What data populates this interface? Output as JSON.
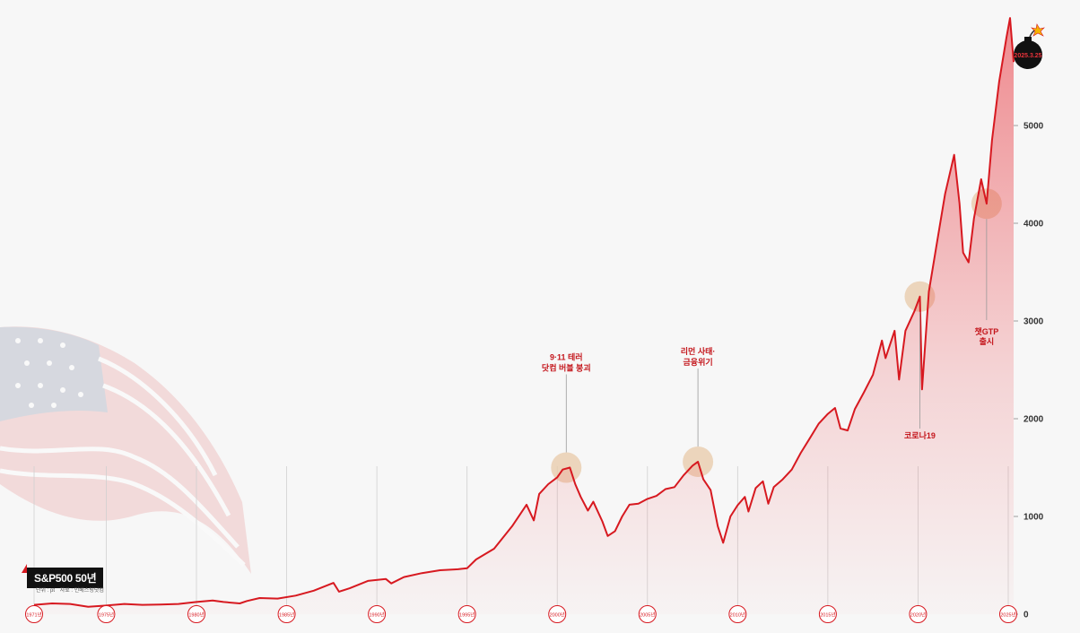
{
  "chart_data": {
    "type": "area",
    "title": "S&P500 50년",
    "subtitle_unit": "단위 : pt",
    "subtitle_source": "자료 : 인베스팅닷컴",
    "x_range": [
      1971,
      2025.3
    ],
    "ylim": [
      0,
      6000
    ],
    "y_ticks": [
      0,
      1000,
      2000,
      3000,
      4000,
      5000
    ],
    "x_ticks": [
      {
        "year": 1971,
        "label": "1971년"
      },
      {
        "year": 1975,
        "label": "1975년"
      },
      {
        "year": 1980,
        "label": "1980년"
      },
      {
        "year": 1985,
        "label": "1985년"
      },
      {
        "year": 1990,
        "label": "1990년"
      },
      {
        "year": 1995,
        "label": "1995년"
      },
      {
        "year": 2000,
        "label": "2000년"
      },
      {
        "year": 2005,
        "label": "2005년"
      },
      {
        "year": 2010,
        "label": "2010년"
      },
      {
        "year": 2015,
        "label": "2015년"
      },
      {
        "year": 2020,
        "label": "2020년"
      },
      {
        "year": 2025,
        "label": "2025년"
      }
    ],
    "series": [
      {
        "values": [
          [
            1971,
            95
          ],
          [
            1972,
            110
          ],
          [
            1973,
            105
          ],
          [
            1974,
            75
          ],
          [
            1975,
            88
          ],
          [
            1976,
            105
          ],
          [
            1977,
            95
          ],
          [
            1978,
            98
          ],
          [
            1979,
            105
          ],
          [
            1980,
            125
          ],
          [
            1980.9,
            140
          ],
          [
            1981.5,
            125
          ],
          [
            1982.4,
            110
          ],
          [
            1982.8,
            135
          ],
          [
            1983.5,
            165
          ],
          [
            1984.5,
            160
          ],
          [
            1985.5,
            190
          ],
          [
            1986.5,
            240
          ],
          [
            1987.6,
            320
          ],
          [
            1987.9,
            230
          ],
          [
            1988.5,
            265
          ],
          [
            1989.5,
            340
          ],
          [
            1990.5,
            360
          ],
          [
            1990.8,
            315
          ],
          [
            1991.5,
            380
          ],
          [
            1992.5,
            420
          ],
          [
            1993.5,
            450
          ],
          [
            1994.5,
            460
          ],
          [
            1995,
            470
          ],
          [
            1995.5,
            560
          ],
          [
            1996.5,
            670
          ],
          [
            1997.5,
            900
          ],
          [
            1998.3,
            1120
          ],
          [
            1998.7,
            960
          ],
          [
            1999,
            1230
          ],
          [
            1999.5,
            1330
          ],
          [
            2000,
            1400
          ],
          [
            2000.3,
            1480
          ],
          [
            2000.7,
            1500
          ],
          [
            2001,
            1330
          ],
          [
            2001.3,
            1200
          ],
          [
            2001.7,
            1060
          ],
          [
            2002,
            1150
          ],
          [
            2002.5,
            950
          ],
          [
            2002.8,
            800
          ],
          [
            2003.2,
            850
          ],
          [
            2003.6,
            1000
          ],
          [
            2004,
            1120
          ],
          [
            2004.5,
            1130
          ],
          [
            2005,
            1180
          ],
          [
            2005.5,
            1210
          ],
          [
            2006,
            1280
          ],
          [
            2006.5,
            1300
          ],
          [
            2007,
            1420
          ],
          [
            2007.5,
            1520
          ],
          [
            2007.8,
            1560
          ],
          [
            2008.1,
            1380
          ],
          [
            2008.5,
            1270
          ],
          [
            2008.9,
            900
          ],
          [
            2009.2,
            730
          ],
          [
            2009.6,
            1000
          ],
          [
            2010,
            1115
          ],
          [
            2010.4,
            1200
          ],
          [
            2010.6,
            1050
          ],
          [
            2011,
            1290
          ],
          [
            2011.4,
            1360
          ],
          [
            2011.7,
            1130
          ],
          [
            2012,
            1300
          ],
          [
            2012.5,
            1380
          ],
          [
            2013,
            1480
          ],
          [
            2013.5,
            1650
          ],
          [
            2014,
            1800
          ],
          [
            2014.5,
            1950
          ],
          [
            2015,
            2050
          ],
          [
            2015.4,
            2110
          ],
          [
            2015.7,
            1900
          ],
          [
            2016.1,
            1880
          ],
          [
            2016.5,
            2100
          ],
          [
            2017,
            2270
          ],
          [
            2017.5,
            2450
          ],
          [
            2018,
            2800
          ],
          [
            2018.2,
            2620
          ],
          [
            2018.7,
            2900
          ],
          [
            2018.95,
            2400
          ],
          [
            2019.3,
            2900
          ],
          [
            2019.8,
            3100
          ],
          [
            2020.1,
            3250
          ],
          [
            2020.22,
            2300
          ],
          [
            2020.6,
            3300
          ],
          [
            2021,
            3750
          ],
          [
            2021.5,
            4300
          ],
          [
            2022,
            4700
          ],
          [
            2022.3,
            4200
          ],
          [
            2022.5,
            3700
          ],
          [
            2022.8,
            3600
          ],
          [
            2023.1,
            4050
          ],
          [
            2023.5,
            4450
          ],
          [
            2023.8,
            4200
          ],
          [
            2024.1,
            4850
          ],
          [
            2024.5,
            5450
          ],
          [
            2024.9,
            5900
          ],
          [
            2025.1,
            6100
          ],
          [
            2025.3,
            5650
          ]
        ]
      }
    ],
    "annotations": [
      {
        "id": "dotcom",
        "x": 2000.5,
        "y": 1500,
        "label_lines": [
          "9·11 테러",
          "닷컴 버블 붕괴"
        ],
        "label_side": "above"
      },
      {
        "id": "lehman",
        "x": 2007.8,
        "y": 1560,
        "label_lines": [
          "리먼 사태·",
          "금융위기"
        ],
        "label_side": "above"
      },
      {
        "id": "covid",
        "x": 2020.1,
        "y": 3250,
        "label_lines": [
          "코로나19"
        ],
        "label_side": "below"
      },
      {
        "id": "chatgpt",
        "x": 2023.8,
        "y": 4200,
        "label_lines": [
          "챗GTP",
          "출시"
        ],
        "label_side": "below"
      }
    ],
    "bomb_label": "2025.3.25",
    "colors": {
      "line": "#d71920",
      "fill": "#e8333b",
      "highlight": "#e8c9a8",
      "grid": "#cccccc"
    }
  }
}
